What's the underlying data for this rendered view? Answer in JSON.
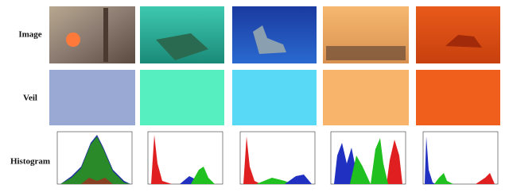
{
  "row_labels": [
    "Image",
    "Veil",
    "Histogram"
  ],
  "veil_colors": [
    "#9aa8d4",
    "#55efc0",
    "#58d9f5",
    "#f9b46c",
    "#f0601c"
  ]
}
